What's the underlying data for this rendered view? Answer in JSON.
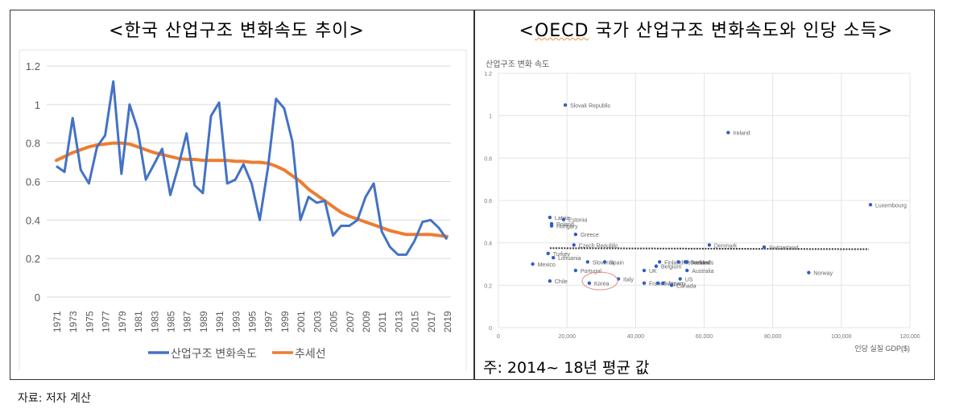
{
  "left_panel": {
    "title": "<한국 산업구조 변화속도 추이>",
    "legend": [
      {
        "label": "산업구조 변화속도",
        "color": "#4472c4"
      },
      {
        "label": "추세선",
        "color": "#ed7d31"
      }
    ]
  },
  "right_panel": {
    "title_prefix": "<",
    "title_oecd": "OECD",
    "title_rest": " 국가 산업구조 변화속도와 인당 소득>",
    "note": "주: 2014~ 18년 평균 값"
  },
  "source": "자료: 저자 계산",
  "chart_data": [
    {
      "type": "line",
      "title": "<한국 산업구조 변화속도 추이>",
      "xlabel": "",
      "ylabel": "",
      "ylim": [
        0,
        1.2
      ],
      "yticks": [
        0,
        0.2,
        0.4,
        0.6,
        0.8,
        1,
        1.2
      ],
      "yticklabels": [
        "0",
        "0.2",
        "0.4",
        "0.6",
        "0.8",
        "1",
        "1.2"
      ],
      "grid": true,
      "legend_position": "bottom",
      "x": [
        1971,
        1972,
        1973,
        1974,
        1975,
        1976,
        1977,
        1978,
        1979,
        1980,
        1981,
        1982,
        1983,
        1984,
        1985,
        1986,
        1987,
        1988,
        1989,
        1990,
        1991,
        1992,
        1993,
        1994,
        1995,
        1996,
        1997,
        1998,
        1999,
        2000,
        2001,
        2002,
        2003,
        2004,
        2005,
        2006,
        2007,
        2008,
        2009,
        2010,
        2011,
        2012,
        2013,
        2014,
        2015,
        2016,
        2017,
        2018,
        2019
      ],
      "xticklabels": [
        "1971",
        "1973",
        "1975",
        "1977",
        "1979",
        "1981",
        "1983",
        "1985",
        "1987",
        "1989",
        "1991",
        "1993",
        "1995",
        "1997",
        "1999",
        "2001",
        "2003",
        "2005",
        "2007",
        "2009",
        "2011",
        "2013",
        "2015",
        "2017",
        "2019"
      ],
      "series": [
        {
          "name": "산업구조 변화속도",
          "color": "#4472c4",
          "values": [
            0.68,
            0.65,
            0.93,
            0.66,
            0.59,
            0.78,
            0.84,
            1.12,
            0.64,
            1.0,
            0.87,
            0.61,
            0.69,
            0.77,
            0.53,
            0.68,
            0.85,
            0.58,
            0.54,
            0.94,
            1.01,
            0.59,
            0.61,
            0.69,
            0.59,
            0.4,
            0.67,
            1.03,
            0.98,
            0.81,
            0.4,
            0.52,
            0.49,
            0.5,
            0.32,
            0.37,
            0.37,
            0.4,
            0.52,
            0.59,
            0.34,
            0.26,
            0.22,
            0.22,
            0.29,
            0.39,
            0.4,
            0.36,
            0.3
          ]
        },
        {
          "name": "추세선",
          "color": "#ed7d31",
          "values": [
            0.71,
            0.73,
            0.75,
            0.765,
            0.78,
            0.79,
            0.795,
            0.8,
            0.8,
            0.795,
            0.78,
            0.765,
            0.75,
            0.74,
            0.73,
            0.72,
            0.715,
            0.715,
            0.71,
            0.71,
            0.71,
            0.71,
            0.705,
            0.705,
            0.7,
            0.7,
            0.695,
            0.68,
            0.66,
            0.63,
            0.6,
            0.56,
            0.53,
            0.5,
            0.47,
            0.44,
            0.42,
            0.405,
            0.39,
            0.375,
            0.36,
            0.345,
            0.335,
            0.325,
            0.325,
            0.325,
            0.325,
            0.32,
            0.315
          ]
        }
      ]
    },
    {
      "type": "scatter",
      "title": "<OECD 국가 산업구조 변화속도와 인당 소득>",
      "ylabel": "산업구조 변화 속도",
      "xlabel": "인당 실질 GDP($)",
      "xlim": [
        0,
        120000
      ],
      "ylim": [
        0,
        1.2
      ],
      "xticklabels": [
        "0",
        "20,000",
        "40,000",
        "60,000",
        "80,000",
        "100,000",
        "120,000"
      ],
      "yticklabels": [
        "0",
        "0.2",
        "0.4",
        "0.6",
        "0.8",
        "1",
        "1.2"
      ],
      "grid": true,
      "trendline": {
        "style": "dotted",
        "x": [
          15000,
          108000
        ],
        "y": [
          0.375,
          0.37
        ]
      },
      "highlight": "Korea",
      "points": [
        {
          "label": "Slovak Republic",
          "x": 19500,
          "y": 1.05
        },
        {
          "label": "Ireland",
          "x": 67000,
          "y": 0.92
        },
        {
          "label": "Luxembourg",
          "x": 108500,
          "y": 0.58
        },
        {
          "label": "Latvia",
          "x": 15000,
          "y": 0.52
        },
        {
          "label": "Estonia",
          "x": 19000,
          "y": 0.51
        },
        {
          "label": "Poland",
          "x": 15500,
          "y": 0.49
        },
        {
          "label": "Hungary",
          "x": 15500,
          "y": 0.48
        },
        {
          "label": "Greece",
          "x": 22500,
          "y": 0.44
        },
        {
          "label": "Czech Republic",
          "x": 22000,
          "y": 0.39
        },
        {
          "label": "Turkey",
          "x": 14500,
          "y": 0.35
        },
        {
          "label": "Lithuania",
          "x": 16000,
          "y": 0.33
        },
        {
          "label": "Mexico",
          "x": 10000,
          "y": 0.3
        },
        {
          "label": "Slovenia",
          "x": 26000,
          "y": 0.31
        },
        {
          "label": "Spain",
          "x": 31000,
          "y": 0.31
        },
        {
          "label": "Portugal",
          "x": 22500,
          "y": 0.27
        },
        {
          "label": "Chile",
          "x": 15000,
          "y": 0.22
        },
        {
          "label": "Korea",
          "x": 26500,
          "y": 0.21
        },
        {
          "label": "Italy",
          "x": 35000,
          "y": 0.23
        },
        {
          "label": "UK",
          "x": 42500,
          "y": 0.27
        },
        {
          "label": "Finland",
          "x": 47000,
          "y": 0.31
        },
        {
          "label": "Belgium",
          "x": 46000,
          "y": 0.29
        },
        {
          "label": "Netherlands",
          "x": 52500,
          "y": 0.31
        },
        {
          "label": "Iceland",
          "x": 55000,
          "y": 0.31
        },
        {
          "label": "Sweden",
          "x": 54500,
          "y": 0.31
        },
        {
          "label": "Australia",
          "x": 55000,
          "y": 0.27
        },
        {
          "label": "France",
          "x": 42500,
          "y": 0.21
        },
        {
          "label": "Germany",
          "x": 46500,
          "y": 0.21
        },
        {
          "label": "Japan",
          "x": 48000,
          "y": 0.21
        },
        {
          "label": "US",
          "x": 53000,
          "y": 0.23
        },
        {
          "label": "Canada",
          "x": 50500,
          "y": 0.2
        },
        {
          "label": "Denmark",
          "x": 61500,
          "y": 0.39
        },
        {
          "label": "Switzerland",
          "x": 77500,
          "y": 0.38
        },
        {
          "label": "Norway",
          "x": 90500,
          "y": 0.26
        }
      ]
    }
  ]
}
